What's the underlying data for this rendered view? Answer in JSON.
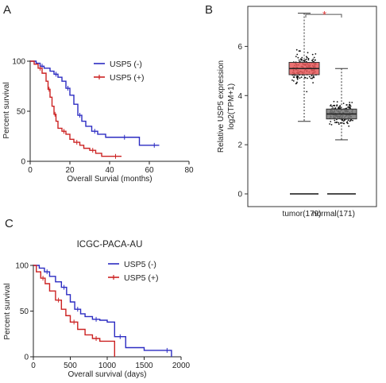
{
  "panel_labels": {
    "a": "A",
    "b": "B",
    "c": "C"
  },
  "chart_data": [
    {
      "id": "A",
      "type": "line",
      "title": "",
      "xlabel": "Overall Survial (months)",
      "ylabel": "Percent survival",
      "xlim": [
        0,
        80
      ],
      "ylim": [
        0,
        100
      ],
      "xticks": [
        "0",
        "20",
        "40",
        "60",
        "80"
      ],
      "yticks": [
        "0",
        "50",
        "100"
      ],
      "legend_position": "top-right",
      "series": [
        {
          "name": "USP5 (-)",
          "color": "#2b2bc2",
          "x": [
            0,
            3,
            5,
            7,
            10,
            12,
            14,
            16,
            18,
            20,
            22,
            24,
            26,
            28,
            31,
            34,
            38,
            45,
            50,
            55,
            60,
            65
          ],
          "y": [
            100,
            98,
            95,
            93,
            90,
            87,
            84,
            80,
            73,
            66,
            57,
            46,
            40,
            35,
            30,
            27,
            24,
            24,
            24,
            16,
            16,
            16
          ]
        },
        {
          "name": "USP5 (+)",
          "color": "#cc2222",
          "x": [
            0,
            2,
            4,
            6,
            8,
            9,
            10,
            11,
            12,
            13,
            14,
            16,
            18,
            20,
            22,
            25,
            27,
            30,
            33,
            36,
            40,
            46
          ],
          "y": [
            100,
            97,
            93,
            88,
            80,
            72,
            64,
            55,
            47,
            40,
            33,
            30,
            27,
            22,
            19,
            16,
            13,
            11,
            8,
            5,
            5,
            5
          ]
        }
      ]
    },
    {
      "id": "B",
      "type": "box",
      "title": "",
      "ylabel_line1": "Relative USP5 expression",
      "ylabel_line2": "log2(TPM+1)",
      "ylim": [
        0,
        7.5
      ],
      "yticks": [
        "0",
        "2",
        "4",
        "6"
      ],
      "categories": [
        "tumor(179)",
        "normal(171)"
      ],
      "significance": "*",
      "boxes": [
        {
          "name": "tumor(179)",
          "color": "#e8595a",
          "min": 2.95,
          "q1": 4.85,
          "median": 5.1,
          "q3": 5.35,
          "max": 7.35,
          "n": 179
        },
        {
          "name": "normal(171)",
          "color": "#777777",
          "min": 2.2,
          "q1": 3.05,
          "median": 3.25,
          "q3": 3.45,
          "max": 5.1,
          "n": 171
        }
      ]
    },
    {
      "id": "C",
      "type": "line",
      "title": "ICGC-PACA-AU",
      "xlabel": "Overall survival (days)",
      "ylabel": "Percent survival",
      "xlim": [
        0,
        2000
      ],
      "ylim": [
        0,
        100
      ],
      "xticks": [
        "0",
        "500",
        "1000",
        "1500",
        "2000"
      ],
      "yticks": [
        "0",
        "50",
        "100"
      ],
      "legend_position": "top-right",
      "series": [
        {
          "name": "USP5 (-)",
          "color": "#2b2bc2",
          "x": [
            0,
            80,
            150,
            220,
            300,
            380,
            450,
            500,
            560,
            640,
            700,
            800,
            900,
            1000,
            1100,
            1250,
            1500,
            1750,
            1870
          ],
          "y": [
            100,
            97,
            93,
            88,
            82,
            76,
            68,
            60,
            52,
            47,
            44,
            41,
            40,
            38,
            22,
            10,
            7,
            7,
            0
          ]
        },
        {
          "name": "USP5 (+)",
          "color": "#cc2222",
          "x": [
            0,
            40,
            100,
            160,
            220,
            300,
            380,
            440,
            500,
            600,
            700,
            800,
            900,
            1000,
            1100
          ],
          "y": [
            100,
            93,
            86,
            80,
            72,
            62,
            52,
            45,
            38,
            30,
            24,
            20,
            17,
            17,
            0
          ]
        }
      ]
    }
  ]
}
